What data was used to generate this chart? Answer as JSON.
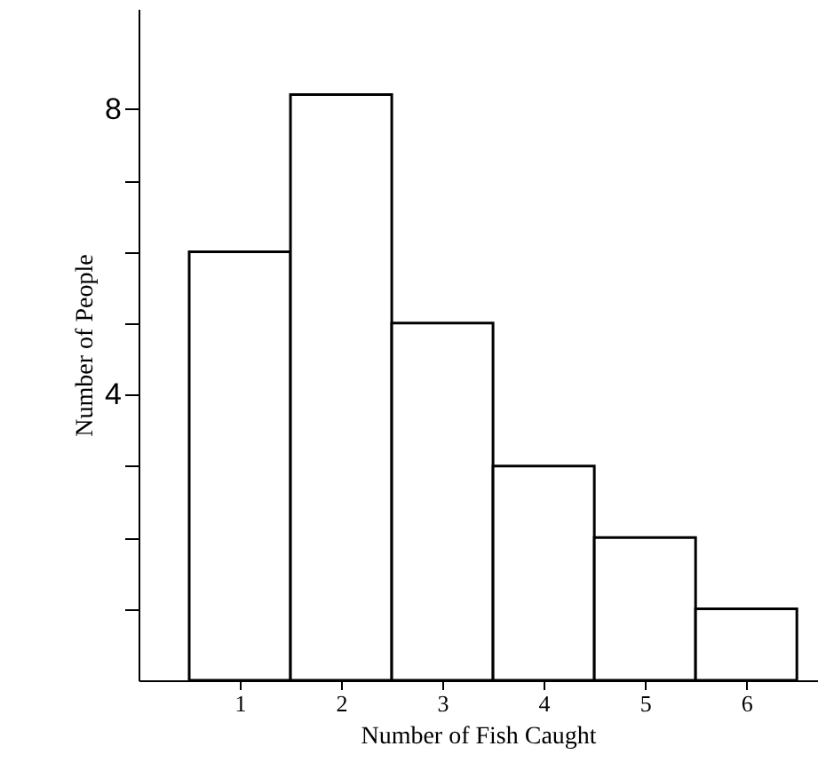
{
  "chart_data": {
    "type": "histogram",
    "xlabel": "Number of Fish Caught",
    "ylabel": "Number of People",
    "bins": [
      0.5,
      1.5,
      2.5,
      3.5,
      4.5,
      5.5,
      6.5
    ],
    "values": [
      6,
      8.2,
      5,
      3,
      2,
      1
    ],
    "color": "#ffffff",
    "xlim": [
      0,
      6.7
    ],
    "xticks": [
      1,
      2,
      3,
      4,
      5,
      6
    ],
    "ylim": [
      0,
      9.4
    ],
    "yticks": [
      {
        "value": 1,
        "label": null
      },
      {
        "value": 2,
        "label": null
      },
      {
        "value": 3,
        "label": null
      },
      4,
      {
        "value": 5,
        "label": null
      },
      {
        "value": 6,
        "label": null
      },
      {
        "value": 7,
        "label": null
      },
      8
    ],
    "grid": false
  }
}
